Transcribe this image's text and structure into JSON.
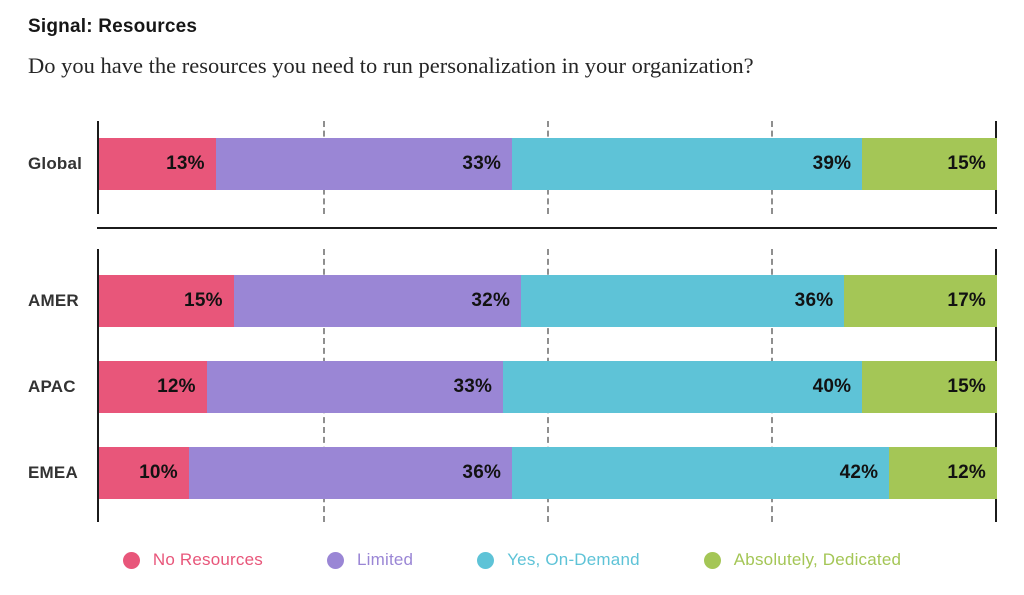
{
  "header": {
    "title": "Signal: Resources",
    "subtitle": "Do you have the resources you need to run personalization in your organization?"
  },
  "chart_data": {
    "type": "bar",
    "stacked": true,
    "orientation": "horizontal",
    "categories": [
      "Global",
      "AMER",
      "APAC",
      "EMEA"
    ],
    "series": [
      {
        "name": "No Resources",
        "color": "#E8567A",
        "values": [
          13,
          15,
          12,
          10
        ]
      },
      {
        "name": "Limited",
        "color": "#9A86D5",
        "values": [
          33,
          32,
          33,
          36
        ]
      },
      {
        "name": "Yes, On-Demand",
        "color": "#5EC3D7",
        "values": [
          39,
          36,
          40,
          42
        ]
      },
      {
        "name": "Absolutely, Dedicated",
        "color": "#A4C656",
        "values": [
          15,
          17,
          15,
          12
        ]
      }
    ],
    "groups": [
      [
        0
      ],
      [
        1,
        2,
        3
      ]
    ],
    "xlim": [
      0,
      100
    ],
    "gridlines_pct": [
      25,
      50,
      75
    ],
    "value_suffix": "%",
    "grid": true,
    "legend_position": "bottom"
  },
  "legend": {
    "items": [
      {
        "label": "No Resources",
        "color": "#E8567A"
      },
      {
        "label": "Limited",
        "color": "#9A86D5"
      },
      {
        "label": "Yes, On-Demand",
        "color": "#5EC3D7"
      },
      {
        "label": "Absolutely, Dedicated",
        "color": "#A4C656"
      }
    ]
  }
}
